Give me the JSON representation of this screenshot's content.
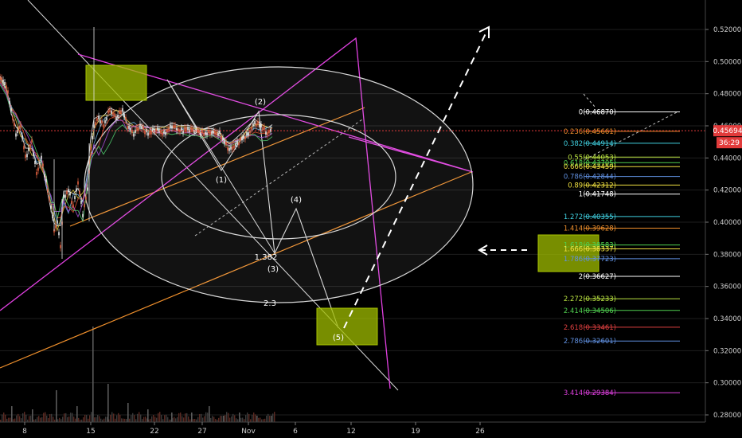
{
  "colors": {
    "background": "#000000",
    "axis_text": "#cfcfcf",
    "grid": "#1e1e1e",
    "price_line": "#e23b3b",
    "triangle": "#e040e0",
    "channel": "#f0902c",
    "ellipse": "#d8d8d8",
    "wave": "#d8d8d8",
    "box_fill": "#8a9a00",
    "box_stroke": "#a8c400",
    "arrow": "#ffffff",
    "candle_up": "#e8e8e8",
    "candle_down": "#e06040",
    "ema_colors": [
      "#ffffff",
      "#e6d040",
      "#6ab0e0",
      "#e05030",
      "#b050e0",
      "#50d070"
    ]
  },
  "chart_data": {
    "type": "candlestick",
    "x_ticks": [
      "8",
      "15",
      "22",
      "27",
      "Nov",
      "6",
      "12",
      "19",
      "26"
    ],
    "y_ticks": [
      "0.52000",
      "0.50000",
      "0.48000",
      "0.46000",
      "0.44000",
      "0.42000",
      "0.40000",
      "0.38000",
      "0.36000",
      "0.34000",
      "0.32000",
      "0.30000",
      "0.28000"
    ],
    "ylim": [
      0.275,
      0.527
    ],
    "current_price": {
      "value": 0.45694,
      "label": "0.45694",
      "countdown": "36:29"
    },
    "price_path": [
      [
        0,
        0.49
      ],
      [
        8,
        0.485
      ],
      [
        14,
        0.47
      ],
      [
        20,
        0.455
      ],
      [
        26,
        0.46
      ],
      [
        32,
        0.44
      ],
      [
        40,
        0.45
      ],
      [
        46,
        0.43
      ],
      [
        52,
        0.44
      ],
      [
        58,
        0.425
      ],
      [
        64,
        0.41
      ],
      [
        68,
        0.395
      ],
      [
        72,
        0.4
      ],
      [
        76,
        0.385
      ],
      [
        80,
        0.415
      ],
      [
        86,
        0.42
      ],
      [
        92,
        0.41
      ],
      [
        98,
        0.425
      ],
      [
        104,
        0.405
      ],
      [
        110,
        0.42
      ],
      [
        114,
        0.445
      ],
      [
        118,
        0.46
      ],
      [
        124,
        0.465
      ],
      [
        130,
        0.46
      ],
      [
        138,
        0.47
      ],
      [
        146,
        0.465
      ],
      [
        154,
        0.47
      ],
      [
        160,
        0.46
      ],
      [
        168,
        0.455
      ],
      [
        176,
        0.46
      ],
      [
        186,
        0.455
      ],
      [
        196,
        0.458
      ],
      [
        206,
        0.455
      ],
      [
        216,
        0.46
      ],
      [
        226,
        0.457
      ],
      [
        236,
        0.458
      ],
      [
        246,
        0.457
      ],
      [
        256,
        0.455
      ],
      [
        266,
        0.456
      ],
      [
        276,
        0.455
      ],
      [
        282,
        0.45
      ],
      [
        288,
        0.445
      ],
      [
        296,
        0.448
      ],
      [
        304,
        0.452
      ],
      [
        312,
        0.455
      ],
      [
        320,
        0.462
      ],
      [
        328,
        0.46
      ],
      [
        336,
        0.455
      ],
      [
        342,
        0.458
      ]
    ],
    "fib_levels": [
      {
        "label": "0(0.46870)",
        "value": 0.4687,
        "color": "#ffffff"
      },
      {
        "label": "0.236(0.45661)",
        "value": 0.45661,
        "color": "#f0902c"
      },
      {
        "label": "0.382(0.44914)",
        "value": 0.44914,
        "color": "#40d0e0"
      },
      {
        "label": "0.55(0.44053)",
        "value": 0.44053,
        "color": "#b8e040"
      },
      {
        "label": "0.618(0.43705)",
        "value": 0.43705,
        "color": "#50d050"
      },
      {
        "label": "0.666(0.43459)",
        "value": 0.43459,
        "color": "#f0e040"
      },
      {
        "label": "0.786(0.42844)",
        "value": 0.42844,
        "color": "#6090e0"
      },
      {
        "label": "0.89(0.42312)",
        "value": 0.42312,
        "color": "#f0e040"
      },
      {
        "label": "1(0.41748)",
        "value": 0.41748,
        "color": "#ffffff"
      },
      {
        "label": "1.272(0.40355)",
        "value": 0.40355,
        "color": "#40d0e0"
      },
      {
        "label": "1.414(0.39628)",
        "value": 0.39628,
        "color": "#f0902c"
      },
      {
        "label": "1.618(0.38583)",
        "value": 0.38583,
        "color": "#50d050"
      },
      {
        "label": "1.666(0.38337)",
        "value": 0.38337,
        "color": "#f0e040"
      },
      {
        "label": "1.786(0.37723)",
        "value": 0.37723,
        "color": "#6090e0"
      },
      {
        "label": "2(0.36627)",
        "value": 0.36627,
        "color": "#ffffff"
      },
      {
        "label": "2.272(0.35233)",
        "value": 0.35233,
        "color": "#b8e040"
      },
      {
        "label": "2.414(0.34506)",
        "value": 0.34506,
        "color": "#50d050"
      },
      {
        "label": "2.618(0.33461)",
        "value": 0.33461,
        "color": "#e04040"
      },
      {
        "label": "2.786(0.32601)",
        "value": 0.32601,
        "color": "#6090e0"
      },
      {
        "label": "3.414(0.29384)",
        "value": 0.29384,
        "color": "#e040e0"
      }
    ],
    "wave_labels": [
      "(1)",
      "(2)",
      "(3)",
      "(4)",
      "(5)"
    ],
    "annotations": [
      "1.382",
      "2.3"
    ],
    "volume_spikes": [
      0.05,
      0.04,
      0.1,
      0.05,
      0.3,
      0.12,
      0.06,
      0.04,
      0.03,
      0.03,
      0.05,
      0.02,
      0.03,
      0.02,
      0.02
    ]
  }
}
